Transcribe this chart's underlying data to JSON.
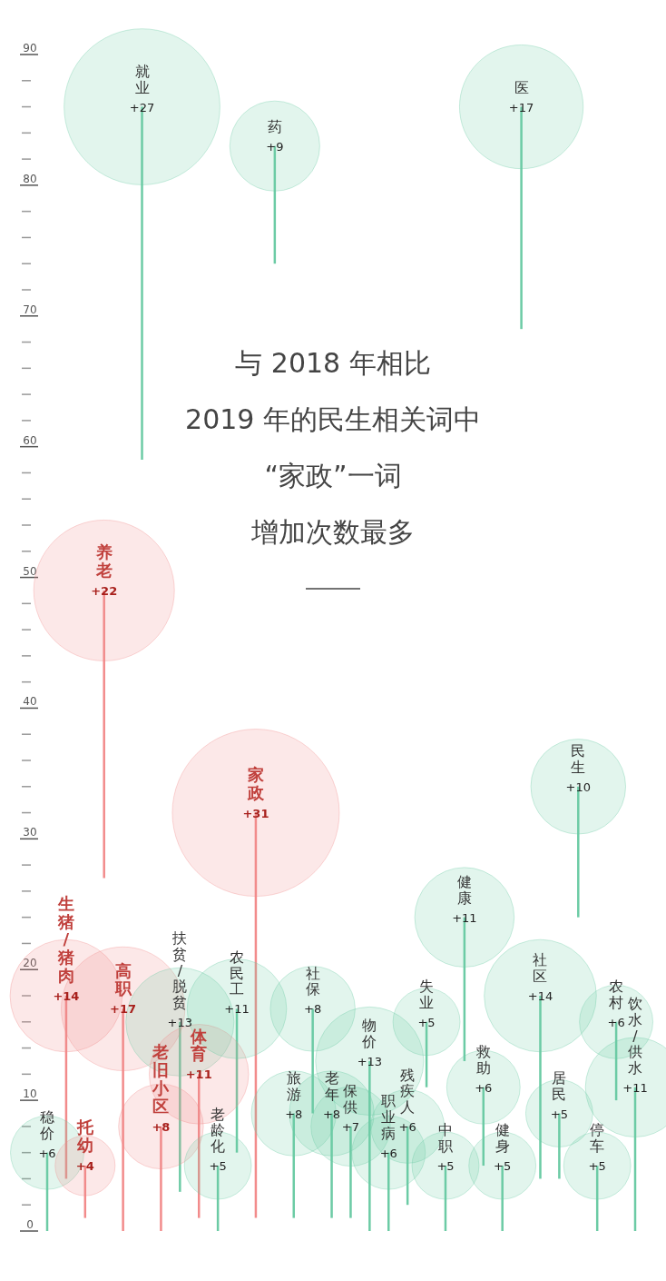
{
  "chart_data": {
    "type": "bubble",
    "title": "与 2018 年相比",
    "subtitle": "2019 年的民生相关词中",
    "categories": [
      "稳价",
      "生猪/猪肉",
      "托幼",
      "养老",
      "高职",
      "就业",
      "老旧小区",
      "扶贫/脱贫",
      "体育",
      "老龄化",
      "农民工",
      "家政",
      "药",
      "旅游",
      "社保",
      "老年",
      "保供",
      "物价",
      "职业病",
      "残疾人",
      "失业",
      "中职",
      "健康",
      "救助",
      "健身",
      "医",
      "社区",
      "居民",
      "民生",
      "停车",
      "农村",
      "饮水/供水"
    ],
    "values": [
      6,
      18,
      5,
      49,
      17,
      86,
      8,
      16,
      12,
      5,
      17,
      32,
      83,
      9,
      17,
      9,
      8,
      13,
      6,
      8,
      16,
      5,
      24,
      11,
      5,
      86,
      18,
      9,
      34,
      5,
      16,
      11
    ],
    "errors": [
      [
        0,
        6
      ],
      [
        4,
        18
      ],
      [
        1,
        5
      ],
      [
        27,
        49
      ],
      [
        0,
        17
      ],
      [
        59,
        86
      ],
      [
        0,
        8
      ],
      [
        3,
        16
      ],
      [
        1,
        12
      ],
      [
        0,
        5
      ],
      [
        6,
        17
      ],
      [
        1,
        32
      ],
      [
        74,
        83
      ],
      [
        1,
        9
      ],
      [
        9,
        17
      ],
      [
        1,
        9
      ],
      [
        1,
        8
      ],
      [
        0,
        13
      ],
      [
        0,
        6
      ],
      [
        2,
        8
      ],
      [
        11,
        16
      ],
      [
        0,
        5
      ],
      [
        13,
        24
      ],
      [
        5,
        11
      ],
      [
        0,
        5
      ],
      [
        69,
        86
      ],
      [
        4,
        18
      ],
      [
        4,
        9
      ],
      [
        24,
        34
      ],
      [
        0,
        5
      ],
      [
        10,
        16
      ],
      [
        0,
        11
      ]
    ],
    "sizes": [
      6,
      14,
      4,
      22,
      17,
      27,
      8,
      13,
      11,
      5,
      11,
      31,
      9,
      8,
      8,
      8,
      7,
      13,
      6,
      6,
      5,
      5,
      11,
      6,
      5,
      17,
      14,
      5,
      10,
      5,
      6,
      11
    ],
    "value_labels": [
      "+6",
      "+14",
      "+4",
      "+22",
      "+17",
      "+27",
      "+8",
      "+13",
      "+11",
      "+5",
      "+11",
      "+31",
      "+9",
      "+8",
      "+8",
      "+8",
      "+7",
      "+13",
      "+6",
      "+6",
      "+5",
      "+5",
      "+11",
      "+6",
      "+5",
      "+17",
      "+14",
      "+5",
      "+10",
      "+5",
      "+6",
      "+11"
    ],
    "colors": [
      "#6ccba5",
      "#f28b8b",
      "#f28b8b",
      "#f28b8b",
      "#f28b8b",
      "#6ccba5",
      "#f28b8b",
      "#6ccba5",
      "#f28b8b",
      "#6ccba5",
      "#6ccba5",
      "#f28b8b",
      "#6ccba5",
      "#6ccba5",
      "#6ccba5",
      "#6ccba5",
      "#6ccba5",
      "#6ccba5",
      "#6ccba5",
      "#6ccba5",
      "#6ccba5",
      "#6ccba5",
      "#6ccba5",
      "#6ccba5",
      "#6ccba5",
      "#6ccba5",
      "#6ccba5",
      "#6ccba5",
      "#6ccba5",
      "#6ccba5",
      "#6ccba5",
      "#6ccba5"
    ],
    "ylim": [
      0,
      90
    ],
    "yticks": [
      0,
      {
        "value": 2,
        "label": null
      },
      {
        "value": 4,
        "label": null
      },
      {
        "value": 6,
        "label": null
      },
      {
        "value": 8,
        "label": null
      },
      10,
      {
        "value": 12,
        "label": null
      },
      {
        "value": 14,
        "label": null
      },
      {
        "value": 16,
        "label": null
      },
      {
        "value": 18,
        "label": null
      },
      20,
      {
        "value": 22,
        "label": null
      },
      {
        "value": 24,
        "label": null
      },
      {
        "value": 26,
        "label": null
      },
      {
        "value": 28,
        "label": null
      },
      30,
      {
        "value": 32,
        "label": null
      },
      {
        "value": 34,
        "label": null
      },
      {
        "value": 36,
        "label": null
      },
      {
        "value": 38,
        "label": null
      },
      40,
      {
        "value": 42,
        "label": null
      },
      {
        "value": 44,
        "label": null
      },
      {
        "value": 46,
        "label": null
      },
      {
        "value": 48,
        "label": null
      },
      50,
      {
        "value": 52,
        "label": null
      },
      {
        "value": 54,
        "label": null
      },
      {
        "value": 56,
        "label": null
      },
      {
        "value": 58,
        "label": null
      },
      60,
      {
        "value": 62,
        "label": null
      },
      {
        "value": 64,
        "label": null
      },
      {
        "value": 66,
        "label": null
      },
      {
        "value": 68,
        "label": null
      },
      70,
      {
        "value": 72,
        "label": null
      },
      {
        "value": 74,
        "label": null
      },
      {
        "value": 76,
        "label": null
      },
      {
        "value": 78,
        "label": null
      },
      80,
      {
        "value": 82,
        "label": null
      },
      {
        "value": 84,
        "label": null
      },
      {
        "value": 86,
        "label": null
      },
      {
        "value": 88,
        "label": null
      },
      90
    ],
    "annotations": [
      "“家政”一词",
      "增加次数最多"
    ]
  }
}
